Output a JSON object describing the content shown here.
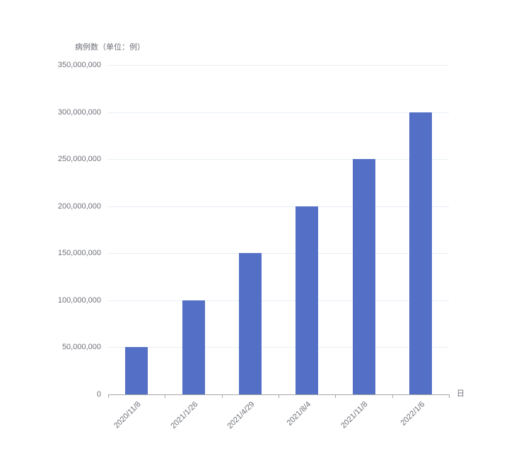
{
  "chart_data": {
    "type": "bar",
    "title": "",
    "ylabel": "病例数（单位：例）",
    "xlabel": "日",
    "categories": [
      "2020/11/8",
      "2021/1/26",
      "2021/4/29",
      "2021/8/4",
      "2021/11/8",
      "2022/1/6"
    ],
    "values": [
      50000000,
      100000000,
      150000000,
      200000000,
      250000000,
      300000000
    ],
    "ylim": [
      0,
      350000000
    ],
    "ytick_step": 50000000,
    "ytick_labels": [
      "0",
      "50,000,000",
      "100,000,000",
      "150,000,000",
      "200,000,000",
      "250,000,000",
      "300,000,000",
      "350,000,000"
    ],
    "grid": true,
    "legend": false,
    "x_label_rotation_deg": 45,
    "colors": {
      "bar": "#5470C6",
      "grid": "#E8EEF4",
      "axis": "#A6A6A6",
      "text": "#6E7079"
    }
  }
}
